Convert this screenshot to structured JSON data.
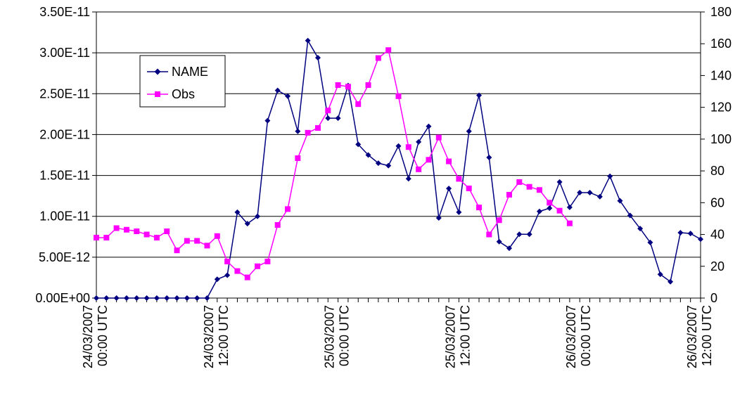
{
  "chart_data": {
    "type": "line",
    "title": "",
    "xlabel": "",
    "ylabel": "",
    "y_left_ticks": [
      "0.00E+00",
      "5.00E-12",
      "1.00E-11",
      "1.50E-11",
      "2.00E-11",
      "2.50E-11",
      "3.00E-11",
      "3.50E-11"
    ],
    "y_left_range": [
      0,
      3.5e-11
    ],
    "y_right_ticks": [
      "0",
      "20",
      "40",
      "60",
      "80",
      "100",
      "120",
      "140",
      "160",
      "180"
    ],
    "y_right_range": [
      0,
      180
    ],
    "x_range": [
      0,
      60
    ],
    "x_ticks": [
      {
        "x": 0,
        "line1": "24/03/2007",
        "line2": "00:00 UTC"
      },
      {
        "x": 12,
        "line1": "24/03/2007",
        "line2": "12:00 UTC"
      },
      {
        "x": 24,
        "line1": "25/03/2007",
        "line2": "00:00 UTC"
      },
      {
        "x": 36,
        "line1": "25/03/2007",
        "line2": "12:00 UTC"
      },
      {
        "x": 48,
        "line1": "26/03/2007",
        "line2": "00:00 UTC"
      },
      {
        "x": 60,
        "line1": "26/03/2007",
        "line2": "12:00 UTC"
      }
    ],
    "grid": "horizontal",
    "legend_position": "top-left",
    "series": [
      {
        "name": "NAME",
        "axis": "left",
        "color": "#000080",
        "marker": "diamond",
        "x": [
          0,
          1,
          2,
          3,
          4,
          5,
          6,
          7,
          8,
          9,
          10,
          11,
          12,
          13,
          14,
          15,
          16,
          17,
          18,
          19,
          20,
          21,
          22,
          23,
          24,
          25,
          26,
          27,
          28,
          29,
          30,
          31,
          32,
          33,
          34,
          35,
          36,
          37,
          38,
          39,
          40,
          41,
          42,
          43,
          44,
          45,
          46,
          47,
          48,
          49,
          50,
          51,
          52,
          53,
          54,
          55,
          56,
          57,
          58,
          59,
          60
        ],
        "values": [
          0,
          0,
          0,
          0,
          0,
          0,
          0,
          0,
          0,
          0,
          0,
          0,
          2.3e-12,
          2.8e-12,
          1.05e-11,
          9.1e-12,
          1e-11,
          2.17e-11,
          2.54e-11,
          2.47e-11,
          2.04e-11,
          3.15e-11,
          2.94e-11,
          2.2e-11,
          2.2e-11,
          2.6e-11,
          1.88e-11,
          1.75e-11,
          1.65e-11,
          1.62e-11,
          1.86e-11,
          1.46e-11,
          1.91e-11,
          2.1e-11,
          9.8e-12,
          1.34e-11,
          1.05e-11,
          2.04e-11,
          2.48e-11,
          1.72e-11,
          6.9e-12,
          6.1e-12,
          7.8e-12,
          7.8e-12,
          1.06e-11,
          1.1e-11,
          1.42e-11,
          1.11e-11,
          1.29e-11,
          1.29e-11,
          1.24e-11,
          1.49e-11,
          1.19e-11,
          1.01e-11,
          8.5e-12,
          6.8e-12,
          2.9e-12,
          2e-12,
          8e-12,
          7.9e-12,
          7.2e-12
        ]
      },
      {
        "name": "Obs",
        "axis": "right",
        "color": "#ff00ff",
        "marker": "square",
        "x": [
          0,
          1,
          2,
          3,
          4,
          5,
          6,
          7,
          8,
          9,
          10,
          11,
          12,
          13,
          14,
          15,
          16,
          17,
          18,
          19,
          20,
          21,
          22,
          23,
          24,
          25,
          26,
          27,
          28,
          29,
          30,
          31,
          32,
          33,
          34,
          35,
          36,
          37,
          38,
          39,
          40,
          41,
          42,
          43,
          44,
          45,
          46,
          47,
          48
        ],
        "values": [
          38,
          38,
          44,
          43,
          42,
          40,
          38,
          42,
          30,
          36,
          36,
          33,
          39,
          23,
          17,
          13,
          20,
          23,
          46,
          56,
          88,
          104,
          107,
          118,
          134,
          133,
          122,
          134,
          151,
          156,
          127,
          95,
          81,
          87,
          101,
          86,
          75,
          69,
          57,
          40,
          49,
          65,
          73,
          70,
          68,
          60,
          55,
          47,
          null
        ]
      }
    ]
  }
}
